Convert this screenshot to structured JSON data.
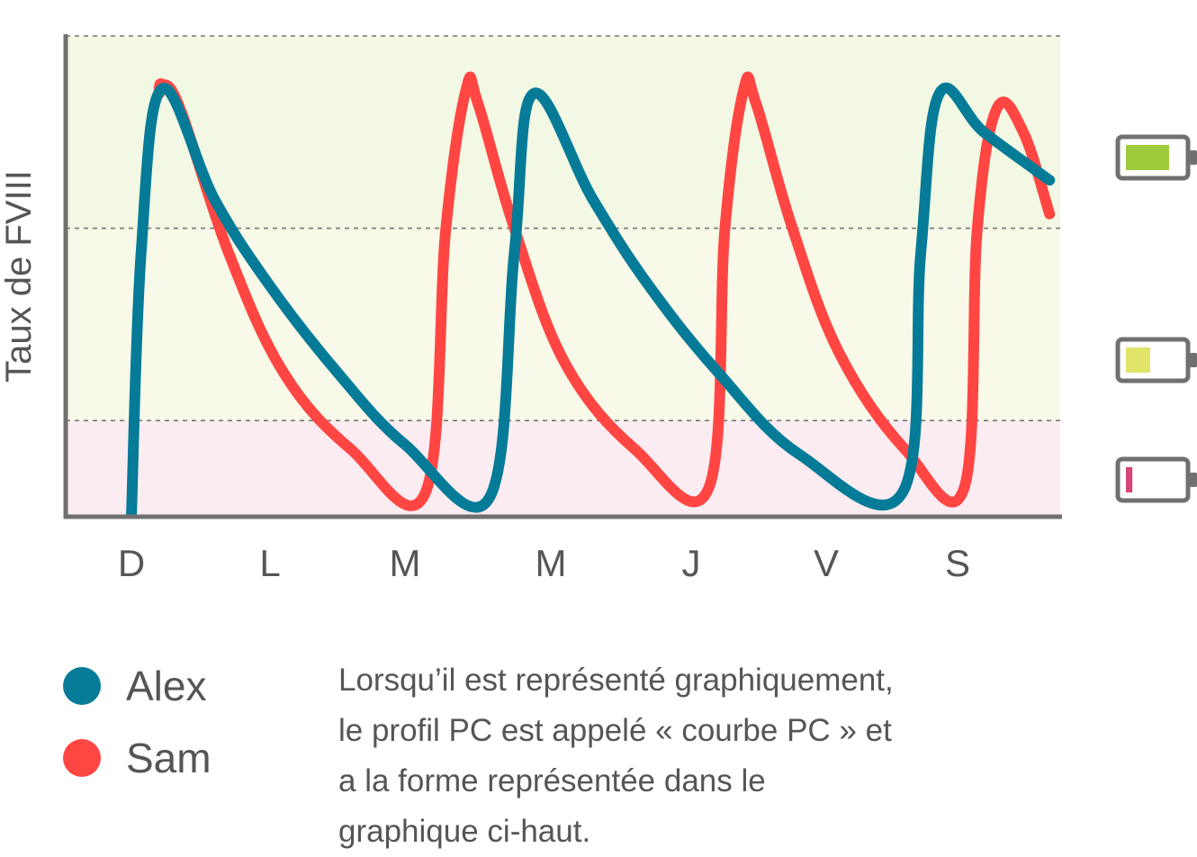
{
  "chart_data": {
    "type": "line",
    "ylabel": "Taux de FVIII",
    "xlabel": "",
    "title": "",
    "categories": [
      "D",
      "L",
      "M",
      "M",
      "J",
      "V",
      "S"
    ],
    "x_range": [
      -0.5,
      6.7
    ],
    "ylim": [
      0,
      100
    ],
    "grid": {
      "y": [
        20,
        60,
        100
      ],
      "style": "dashed"
    },
    "zones": [
      {
        "from": 60,
        "to": 100,
        "color": "#f2f8e3"
      },
      {
        "from": 20,
        "to": 60,
        "color": "#f8f9e8"
      },
      {
        "from": 0,
        "to": 20,
        "color": "#fbecf2"
      }
    ],
    "series": [
      {
        "name": "Alex",
        "color": "#057b98",
        "points": [
          [
            0.0,
            0
          ],
          [
            0.07,
            55
          ],
          [
            0.22,
            89
          ],
          [
            0.6,
            66
          ],
          [
            1.0,
            48
          ],
          [
            1.5,
            30
          ],
          [
            2.0,
            15
          ],
          [
            2.58,
            4
          ],
          [
            2.75,
            55
          ],
          [
            2.88,
            88
          ],
          [
            3.3,
            66
          ],
          [
            3.7,
            48
          ],
          [
            4.2,
            30
          ],
          [
            4.8,
            13
          ],
          [
            5.58,
            5
          ],
          [
            5.72,
            55
          ],
          [
            5.86,
            88
          ],
          [
            6.2,
            80
          ],
          [
            6.7,
            70
          ]
        ]
      },
      {
        "name": "Sam",
        "color": "#ff4643",
        "points": [
          [
            0.2,
            88
          ],
          [
            0.22,
            90
          ],
          [
            0.35,
            85
          ],
          [
            0.7,
            55
          ],
          [
            1.1,
            30
          ],
          [
            1.6,
            14
          ],
          [
            2.14,
            5
          ],
          [
            2.28,
            60
          ],
          [
            2.42,
            89
          ],
          [
            2.5,
            86
          ],
          [
            2.75,
            60
          ],
          [
            3.1,
            32
          ],
          [
            3.6,
            14
          ],
          [
            4.13,
            6
          ],
          [
            4.25,
            60
          ],
          [
            4.39,
            89
          ],
          [
            4.48,
            86
          ],
          [
            4.75,
            60
          ],
          [
            5.1,
            34
          ],
          [
            5.6,
            14
          ],
          [
            6.05,
            6
          ],
          [
            6.15,
            60
          ],
          [
            6.3,
            85
          ],
          [
            6.5,
            80
          ],
          [
            6.7,
            63
          ]
        ]
      }
    ],
    "legend_position": "bottom-left"
  },
  "legend": {
    "items": [
      {
        "label": "Alex",
        "color": "#057b98"
      },
      {
        "label": "Sam",
        "color": "#ff4643"
      }
    ]
  },
  "caption": "Lorsqu’il est représenté graphiquement,\nle profil PC est appelé « courbe PC » et\na la forme représentée dans le\ngraphique ci-haut.",
  "battery_icons": [
    {
      "name": "battery-full-icon",
      "level": 0.8,
      "color": "#9ecb3c"
    },
    {
      "name": "battery-medium-icon",
      "level": 0.45,
      "color": "#e2e46a"
    },
    {
      "name": "battery-low-icon",
      "level": 0.12,
      "color": "#d6457a"
    }
  ],
  "colors": {
    "axis": "#707070",
    "grid": "#777777",
    "battery_outline": "#707070"
  }
}
